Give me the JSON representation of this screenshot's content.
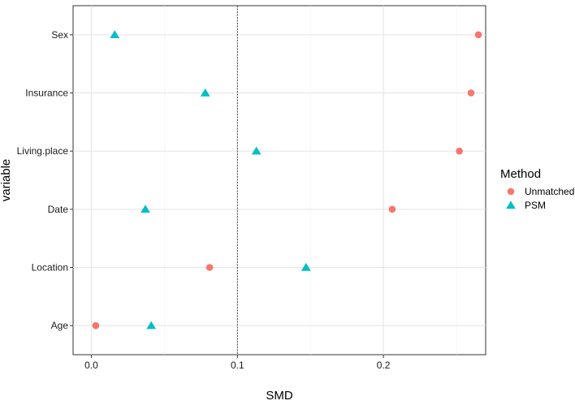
{
  "chart_data": {
    "type": "scatter",
    "xlabel": "SMD",
    "ylabel": "variable",
    "xlim": [
      -0.0125,
      0.27
    ],
    "x_ticks": [
      "0.0",
      "0.1",
      "0.2"
    ],
    "x_tick_values": [
      0.0,
      0.1,
      0.2
    ],
    "categories": [
      "Sex",
      "Insurance",
      "Living.place",
      "Date",
      "Location",
      "Age"
    ],
    "reference_line": 0.1,
    "grid": true,
    "legend": {
      "title": "Method",
      "placement": "right"
    },
    "series": [
      {
        "name": "Unmatched",
        "marker": "circle",
        "color": "#F8766D",
        "values": [
          0.265,
          0.26,
          0.252,
          0.206,
          0.081,
          0.003
        ]
      },
      {
        "name": "PSM",
        "marker": "triangle",
        "color": "#00BFC4",
        "values": [
          0.016,
          0.078,
          0.113,
          0.037,
          0.147,
          0.041
        ]
      }
    ]
  }
}
